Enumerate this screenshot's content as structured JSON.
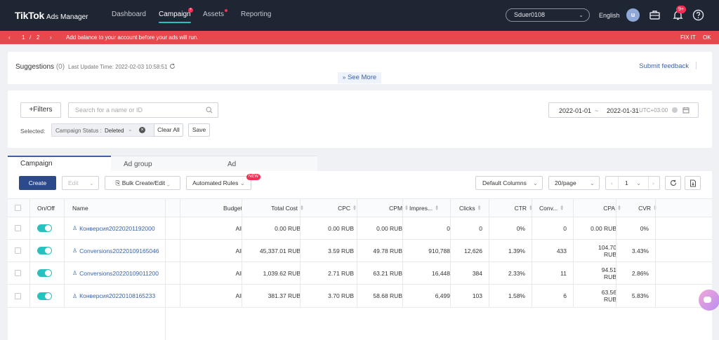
{
  "brand": {
    "name": "TikTok",
    "product": "Ads Manager"
  },
  "nav": {
    "dashboard": "Dashboard",
    "campaign": "Campaign",
    "assets": "Assets",
    "reporting": "Reporting"
  },
  "account": {
    "name": "Sduer0108",
    "language": "English",
    "avatar_initial": "u",
    "notif_badge": "9+"
  },
  "alert": {
    "page_current": "1",
    "page_sep": "/",
    "page_total": "2",
    "message": "Add balance to your account before your ads will run.",
    "fix": "FIX IT",
    "ok": "OK"
  },
  "suggestions": {
    "title": "Suggestions",
    "count": "(0)",
    "update_time": "Last Update Time: 2022-02-03 10:58:51",
    "submit_feedback": "Submit feedback",
    "see_more": "See More"
  },
  "filters": {
    "filters_label": "Filters",
    "search_placeholder": "Search for a name or ID",
    "date_from": "2022-01-01",
    "date_sep": "~",
    "date_to": "2022-01-31",
    "timezone": "UTC+03:00",
    "selected_label": "Selected:",
    "tag_key": "Campaign Status :",
    "tag_value": "Deleted",
    "clear_all": "Clear All",
    "save": "Save"
  },
  "tabs": {
    "campaign": "Campaign",
    "ad_group": "Ad group",
    "ad": "Ad"
  },
  "toolbar": {
    "create": "Create",
    "edit": "Edit",
    "bulk": "Bulk Create/Edit",
    "automated_rules": "Automated Rules",
    "new_badge": "NEW",
    "default_columns": "Default Columns",
    "per_page": "20/page",
    "page": "1"
  },
  "table": {
    "headers": {
      "onoff": "On/Off",
      "name": "Name",
      "budget": "Budget",
      "total_cost": "Total Cost",
      "cpc": "CPC",
      "cpm": "CPM",
      "impressions": "Impres...",
      "clicks": "Clicks",
      "ctr": "CTR",
      "conversions": "Conv...",
      "cpa": "CPA",
      "cvr": "CVR"
    },
    "rows": [
      {
        "name": "Конверсия20220201192000",
        "budget": "All",
        "total_cost": "0.00 RUB",
        "cpc": "0.00 RUB",
        "cpm": "0.00 RUB",
        "impressions": "0",
        "clicks": "0",
        "ctr": "0%",
        "conversions": "0",
        "cpa1": "0.00 RUB",
        "cpa2": "",
        "cvr": "0%"
      },
      {
        "name": "Conversions20220109165046",
        "budget": "All",
        "total_cost": "45,337.01 RUB",
        "cpc": "3.59 RUB",
        "cpm": "49.78 RUB",
        "impressions": "910,788",
        "clicks": "12,626",
        "ctr": "1.39%",
        "conversions": "433",
        "cpa1": "104.70",
        "cpa2": "RUB",
        "cvr": "3.43%"
      },
      {
        "name": "Conversions20220109011200",
        "budget": "All",
        "total_cost": "1,039.62 RUB",
        "cpc": "2.71 RUB",
        "cpm": "63.21 RUB",
        "impressions": "16,448",
        "clicks": "384",
        "ctr": "2.33%",
        "conversions": "11",
        "cpa1": "94.51",
        "cpa2": "RUB",
        "cvr": "2.86%"
      },
      {
        "name": "Конверсия20220108165233",
        "budget": "All",
        "total_cost": "381.37 RUB",
        "cpc": "3.70 RUB",
        "cpm": "58.68 RUB",
        "impressions": "6,499",
        "clicks": "103",
        "ctr": "1.58%",
        "conversions": "6",
        "cpa1": "63.56",
        "cpa2": "RUB",
        "cvr": "5.83%"
      }
    ]
  },
  "colors": {
    "nav_bg": "#1e2533",
    "alert_bg": "#e8474c",
    "primary": "#3a62a8",
    "toggle_on": "#25c2c0",
    "badge": "#fe2c55"
  }
}
